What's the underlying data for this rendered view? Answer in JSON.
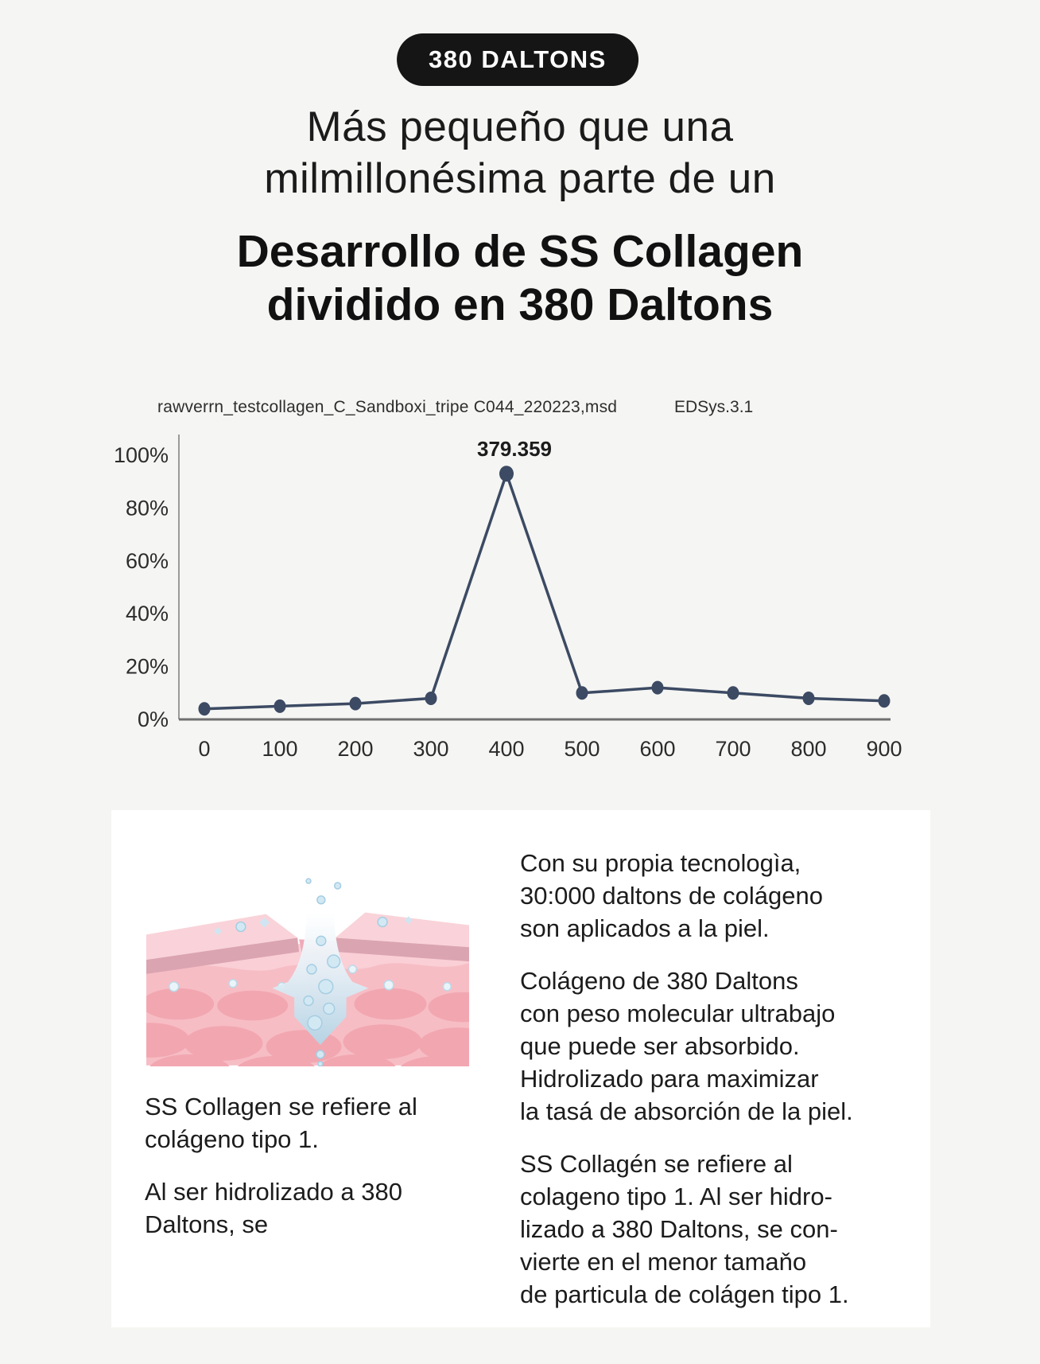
{
  "page": {
    "background": "#f5f5f3",
    "card_background": "#ffffff"
  },
  "badge": {
    "label": "380 DALTONS",
    "bg": "#151515",
    "text_color": "#ffffff"
  },
  "titles": {
    "light": "Más pequeño que una\nmilmillonésima parte de un",
    "bold": "Desarrollo de SS Collagen\ndividido en 380 Daltons"
  },
  "chart": {
    "file_label": "rawverrn_testcollagen_C_Sandboxi_tripe C044_220223,msd",
    "system_label": "EDSys.3.1"
  },
  "chart_data": {
    "type": "line",
    "x": [
      0,
      100,
      200,
      300,
      400,
      500,
      600,
      700,
      800,
      900
    ],
    "values": [
      4,
      5,
      6,
      8,
      93,
      10,
      12,
      10,
      8,
      7
    ],
    "x_tick_labels": [
      "0",
      "100",
      "200",
      "300",
      "400",
      "500",
      "600",
      "700",
      "800",
      "900"
    ],
    "y_tick_labels": [
      "100%",
      "80%",
      "60%",
      "40%",
      "20%",
      "0%"
    ],
    "ylim": [
      0,
      100
    ],
    "annotation": {
      "x": 400,
      "text": "379.359"
    },
    "title": "",
    "xlabel": "",
    "ylabel": "",
    "grid": false,
    "legend": "none",
    "line_color": "#3c4a63",
    "marker_color": "#3c4a63"
  },
  "card": {
    "illustration_alt": "skin-cross-section-absorption",
    "illustration_colors": {
      "epidermis": "#f9d3d9",
      "epidermis_edge": "#dba4b1",
      "dermis": "#f7bdc5",
      "dermis_blob": "#f2a7b0",
      "drop_blue": "#b7d7e7",
      "bubble": "#d2e9f4"
    },
    "left_paragraphs": [
      "SS Collagen se refiere al\ncolágeno tipo 1.",
      "Al ser hidrolizado a 380\nDaltons, se"
    ],
    "right_paragraphs": [
      "Con su propia tecnologìa,\n30:000 daltons de colágeno\nson aplicados a la piel.",
      "Colágeno de 380 Daltons\ncon peso molecular ultrabajo\nque puede ser absorbido.\nHidrolizado para maximizar\nla tasá de absorción de la piel.",
      "SS Collagén se refiere al\ncolageno tipo 1. Al ser hidro-\nlizado a 380 Daltons, se con-\nvierte en el menor tamaňo\nde particula de colágen tipo 1."
    ]
  }
}
